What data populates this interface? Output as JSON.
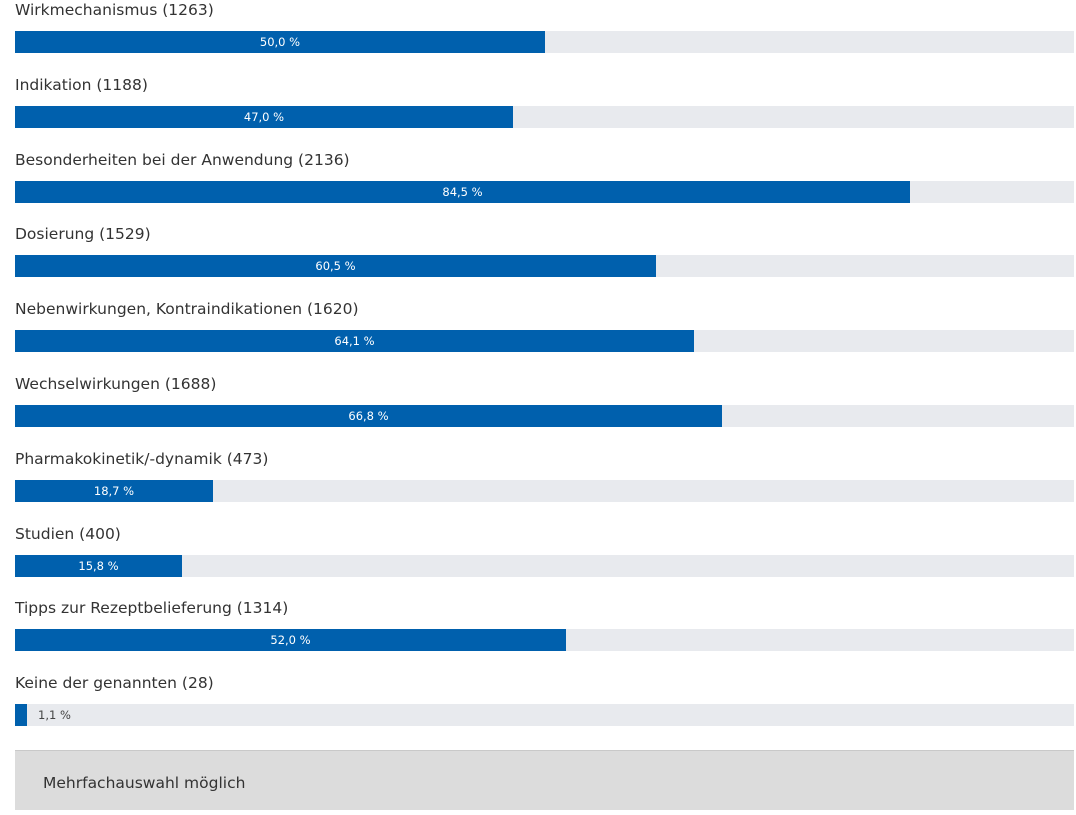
{
  "colors": {
    "bar": "#0060ad",
    "track": "#e8eaee",
    "text": "#333333",
    "note_background": "#dcdcdc"
  },
  "chart_data": {
    "type": "bar",
    "orientation": "horizontal",
    "xlim": [
      0,
      100
    ],
    "unit": "%",
    "categories": [
      "Wirkmechanismus (1263)",
      "Indikation (1188)",
      "Besonderheiten bei der Anwendung (2136)",
      "Dosierung (1529)",
      "Nebenwirkungen, Kontraindikationen (1620)",
      "Wechselwirkungen (1688)",
      "Pharmakokinetik/-dynamik (473)",
      "Studien (400)",
      "Tipps zur Rezeptbelieferung (1314)",
      "Keine der genannten (28)"
    ],
    "values": [
      50.0,
      47.0,
      84.5,
      60.5,
      64.1,
      66.8,
      18.7,
      15.8,
      52.0,
      1.1
    ],
    "value_labels": [
      "50,0 %",
      "47,0 %",
      "84,5 %",
      "60,5 %",
      "64,1 %",
      "66,8 %",
      "18,7 %",
      "15,8 %",
      "52,0 %",
      "1,1 %"
    ],
    "grid": false,
    "legend": "none"
  },
  "footer": {
    "note": "Mehrfachauswahl möglich"
  }
}
